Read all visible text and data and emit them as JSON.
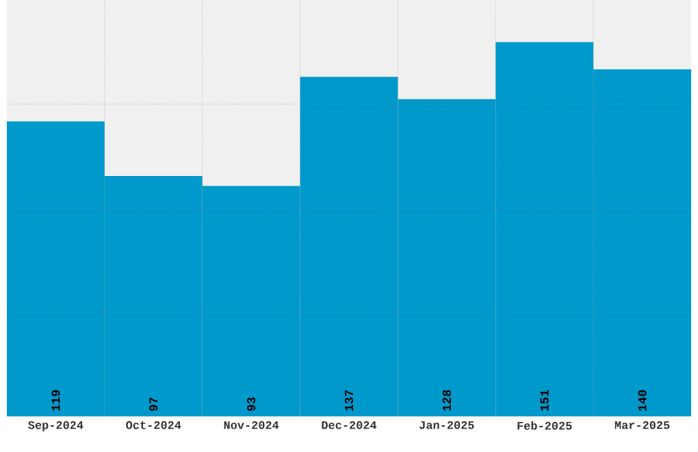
{
  "chart_data": {
    "type": "bar",
    "categories": [
      "Sep-2024",
      "Oct-2024",
      "Nov-2024",
      "Dec-2024",
      "Jan-2025",
      "Feb-2025",
      "Mar-2025"
    ],
    "values": [
      119,
      97,
      93,
      137,
      128,
      151,
      140
    ],
    "color": "#0099cc",
    "data_labels": true,
    "grid": true,
    "ylim": [
      0,
      168
    ],
    "yticks": [
      {
        "value": 42,
        "label": null
      },
      {
        "value": 84,
        "label": null
      },
      {
        "value": 126,
        "label": null
      }
    ],
    "tick_labels": "x"
  }
}
